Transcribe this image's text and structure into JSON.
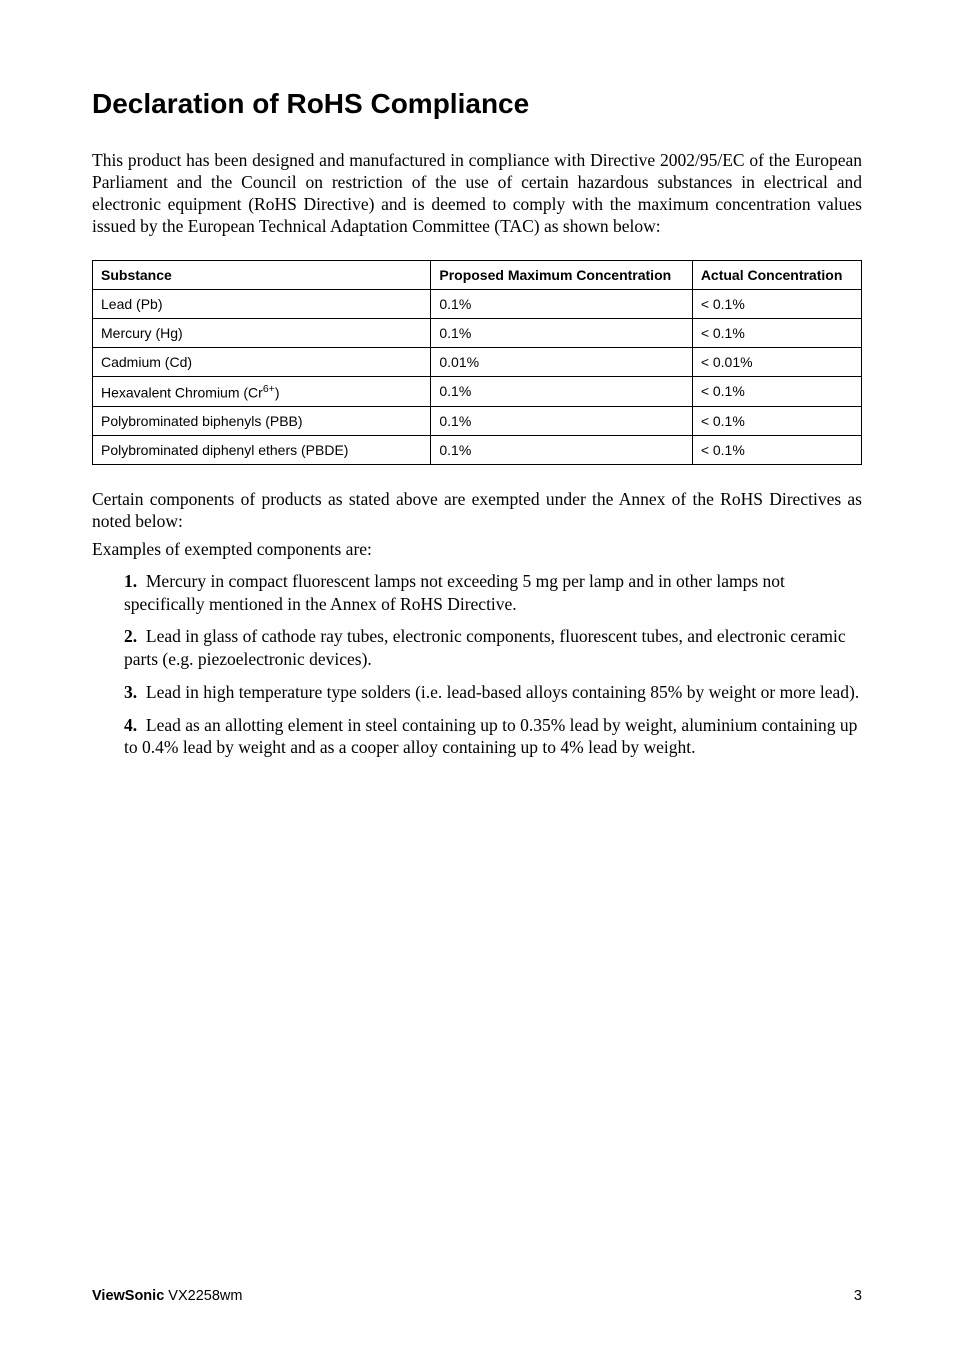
{
  "heading": "Declaration of RoHS Compliance",
  "intro": "This product has been designed and manufactured in compliance with Directive 2002/95/EC of the European Parliament and the Council on restriction of the use of certain hazardous substances in electrical and electronic equipment (RoHS Directive) and is deemed to comply with the maximum concentration values issued by the European Technical Adaptation Committee (TAC) as shown below:",
  "table": {
    "headers": {
      "substance": "Substance",
      "proposed": "Proposed Maximum Concentration",
      "actual": "Actual Concentration"
    },
    "rows": [
      {
        "substance": "Lead (Pb)",
        "proposed": "0.1%",
        "actual": "< 0.1%"
      },
      {
        "substance": "Mercury (Hg)",
        "proposed": "0.1%",
        "actual": "< 0.1%"
      },
      {
        "substance": "Cadmium (Cd)",
        "proposed": "0.01%",
        "actual": "< 0.01%"
      },
      {
        "substance_html": "Hexavalent Chromium (Cr<sup>6+</sup>)",
        "proposed": "0.1%",
        "actual": "< 0.1%"
      },
      {
        "substance": "Polybrominated biphenyls (PBB)",
        "proposed": "0.1%",
        "actual": "< 0.1%"
      },
      {
        "substance": "Polybrominated diphenyl ethers (PBDE)",
        "proposed": "0.1%",
        "actual": "< 0.1%"
      }
    ]
  },
  "note": "Certain components of products as stated above are exempted under the Annex of the RoHS Directives as noted below:",
  "examples_label": "Examples of exempted components are:",
  "list": [
    "Mercury in compact fluorescent lamps not exceeding 5 mg per lamp and in other lamps not specifically mentioned in the Annex of RoHS Directive.",
    "Lead in glass of cathode ray tubes, electronic components, fluorescent tubes, and electronic ceramic parts (e.g. piezoelectronic devices).",
    "Lead in high temperature type solders (i.e. lead-based alloys containing 85% by weight or more lead).",
    "Lead as an allotting element in steel containing up to 0.35% lead by weight, aluminium containing up to 0.4% lead by weight and as a cooper alloy containing up to 4% lead by weight."
  ],
  "footer": {
    "brand": "ViewSonic",
    "model": "VX2258wm",
    "page": "3",
    "sep": "   "
  }
}
